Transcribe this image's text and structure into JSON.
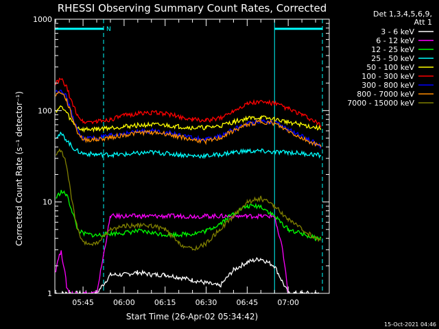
{
  "chart_data": {
    "type": "line",
    "title": "RHESSI Observing Summary Count Rates, Corrected",
    "ylabel": "Corrected Count Rate (s⁻¹ detector⁻¹)",
    "xlabel": "Start Time (26-Apr-02 05:34:42)",
    "footer": "15-Oct-2021 04:46",
    "y_scale": "log",
    "ylim": [
      1,
      1000
    ],
    "xlim": [
      "05:34:42",
      "07:15:00"
    ],
    "y_ticks": [
      "1",
      "10",
      "100",
      "1000"
    ],
    "x_ticks": [
      "05:45",
      "06:00",
      "06:15",
      "06:30",
      "06:45",
      "07:00"
    ],
    "legend_header": [
      "Det 1,3,4,5,6,9,",
      "Att 1"
    ],
    "legend_position": "top-right",
    "flag_label": "N",
    "night_intervals": [
      [
        "05:34:42",
        "05:52:30"
      ],
      [
        "06:55:00",
        "07:12:30"
      ]
    ],
    "series": [
      {
        "name": "3 - 6 keV",
        "color": "#ffffff",
        "x": [
          "05:35",
          "05:38",
          "05:40",
          "05:45",
          "05:50",
          "05:55",
          "06:00",
          "06:05",
          "06:10",
          "06:15",
          "06:20",
          "06:25",
          "06:30",
          "06:35",
          "06:40",
          "06:45",
          "06:50",
          "06:55",
          "07:00",
          "07:05",
          "07:10",
          "07:12"
        ],
        "values": [
          1,
          1,
          1,
          1,
          1,
          1.6,
          1.6,
          1.7,
          1.6,
          1.6,
          1.5,
          1.4,
          1.3,
          1.2,
          1.8,
          2.2,
          2.4,
          2.0,
          1,
          1,
          1,
          1
        ]
      },
      {
        "name": "6 - 12 keV",
        "color": "#ff00ff",
        "x": [
          "05:35",
          "05:36",
          "05:37",
          "05:38",
          "05:39",
          "05:40",
          "05:45",
          "05:50",
          "05:55",
          "06:00",
          "06:05",
          "06:10",
          "06:15",
          "06:20",
          "06:25",
          "06:30",
          "06:35",
          "06:40",
          "06:45",
          "06:50",
          "06:55",
          "06:56",
          "06:58",
          "07:00"
        ],
        "values": [
          1.8,
          2.5,
          2.8,
          2.0,
          1.2,
          1,
          1,
          1,
          7,
          7,
          7,
          7,
          7,
          7,
          7,
          7,
          7,
          7,
          7,
          7,
          7,
          5,
          3,
          1
        ]
      },
      {
        "name": "12 - 25 keV",
        "color": "#00ff00",
        "x": [
          "05:35",
          "05:37",
          "05:39",
          "05:41",
          "05:43",
          "05:45",
          "05:50",
          "05:55",
          "06:00",
          "06:05",
          "06:10",
          "06:15",
          "06:20",
          "06:25",
          "06:30",
          "06:35",
          "06:40",
          "06:45",
          "06:50",
          "06:55",
          "07:00",
          "07:05",
          "07:10",
          "07:12"
        ],
        "values": [
          11,
          13,
          12,
          8,
          5,
          4.5,
          4.3,
          4.5,
          4.6,
          4.8,
          4.6,
          4.4,
          4.4,
          4.5,
          4.8,
          5.8,
          7.5,
          9,
          9,
          7,
          5,
          4.5,
          4,
          4
        ]
      },
      {
        "name": "25 - 50 keV",
        "color": "#00ffff",
        "x": [
          "05:35",
          "05:37",
          "05:39",
          "05:41",
          "05:43",
          "05:45",
          "05:50",
          "05:55",
          "06:00",
          "06:05",
          "06:10",
          "06:15",
          "06:20",
          "06:25",
          "06:30",
          "06:35",
          "06:40",
          "06:45",
          "06:50",
          "06:55",
          "07:00",
          "07:05",
          "07:10",
          "07:12"
        ],
        "values": [
          52,
          55,
          48,
          40,
          36,
          34,
          33,
          33,
          33,
          34,
          35,
          34,
          33,
          32,
          32,
          33,
          35,
          36,
          36,
          35,
          35,
          34,
          33,
          32
        ]
      },
      {
        "name": "50 - 100 keV",
        "color": "#ffff00",
        "x": [
          "05:35",
          "05:37",
          "05:39",
          "05:41",
          "05:43",
          "05:45",
          "05:50",
          "05:55",
          "06:00",
          "06:05",
          "06:10",
          "06:15",
          "06:20",
          "06:25",
          "06:30",
          "06:35",
          "06:40",
          "06:45",
          "06:50",
          "06:55",
          "07:00",
          "07:05",
          "07:10",
          "07:12"
        ],
        "values": [
          100,
          110,
          95,
          75,
          65,
          62,
          63,
          65,
          67,
          69,
          70,
          69,
          67,
          65,
          65,
          68,
          75,
          82,
          84,
          80,
          75,
          70,
          65,
          63
        ]
      },
      {
        "name": "100 - 300 keV",
        "color": "#ff0000",
        "x": [
          "05:35",
          "05:37",
          "05:39",
          "05:41",
          "05:43",
          "05:45",
          "05:50",
          "05:55",
          "06:00",
          "06:05",
          "06:10",
          "06:15",
          "06:20",
          "06:25",
          "06:30",
          "06:35",
          "06:40",
          "06:45",
          "06:50",
          "06:55",
          "07:00",
          "07:05",
          "07:10",
          "07:12"
        ],
        "values": [
          200,
          220,
          180,
          120,
          90,
          75,
          76,
          80,
          88,
          93,
          95,
          93,
          86,
          80,
          78,
          82,
          100,
          120,
          125,
          120,
          105,
          90,
          75,
          68
        ]
      },
      {
        "name": "300 - 800 keV",
        "color": "#0000ff",
        "x": [
          "05:35",
          "05:37",
          "05:39",
          "05:41",
          "05:43",
          "05:45",
          "05:50",
          "05:55",
          "06:00",
          "06:05",
          "06:10",
          "06:15",
          "06:20",
          "06:25",
          "06:30",
          "06:35",
          "06:40",
          "06:45",
          "06:50",
          "06:55",
          "07:00",
          "07:05",
          "07:10",
          "07:12"
        ],
        "values": [
          160,
          170,
          140,
          90,
          60,
          50,
          50,
          53,
          56,
          59,
          60,
          58,
          54,
          50,
          48,
          52,
          62,
          72,
          78,
          74,
          62,
          52,
          44,
          41
        ]
      },
      {
        "name": "800 - 7000 keV",
        "color": "#ff8c00",
        "x": [
          "05:35",
          "05:37",
          "05:39",
          "05:41",
          "05:43",
          "05:45",
          "05:50",
          "05:55",
          "06:00",
          "06:05",
          "06:10",
          "06:15",
          "06:20",
          "06:25",
          "06:30",
          "06:35",
          "06:40",
          "06:45",
          "06:50",
          "06:55",
          "07:00",
          "07:05",
          "07:10",
          "07:12"
        ],
        "values": [
          150,
          160,
          130,
          85,
          58,
          48,
          48,
          51,
          54,
          57,
          58,
          56,
          52,
          48,
          46,
          50,
          60,
          70,
          76,
          72,
          60,
          50,
          43,
          40
        ]
      },
      {
        "name": "7000 - 15000 keV",
        "color": "#808000",
        "x": [
          "05:35",
          "05:37",
          "05:39",
          "05:41",
          "05:43",
          "05:45",
          "05:50",
          "05:55",
          "06:00",
          "06:05",
          "06:10",
          "06:15",
          "06:20",
          "06:25",
          "06:30",
          "06:35",
          "06:40",
          "06:45",
          "06:50",
          "06:55",
          "07:00",
          "07:05",
          "07:10",
          "07:12"
        ],
        "values": [
          32,
          38,
          25,
          10,
          5,
          3.5,
          3.5,
          5,
          5.5,
          5.5,
          5.5,
          5,
          3.5,
          3,
          3.5,
          5,
          7,
          10,
          11,
          9,
          6.5,
          5,
          4,
          3.8
        ]
      }
    ]
  }
}
